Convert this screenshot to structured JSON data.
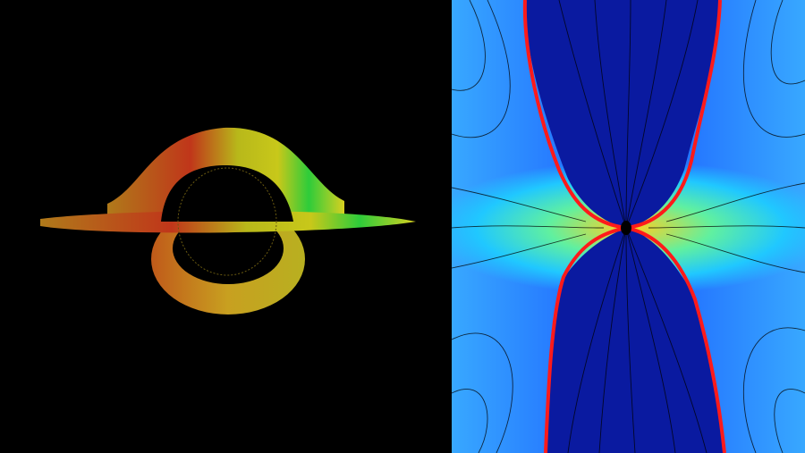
{
  "panels": [
    {
      "id": "accretion-disk-render",
      "background": "#000000"
    },
    {
      "id": "field-simulation",
      "background": "#1a5cff",
      "boundary_color": "#ff1a1a",
      "streamline_color": "#000000"
    }
  ]
}
